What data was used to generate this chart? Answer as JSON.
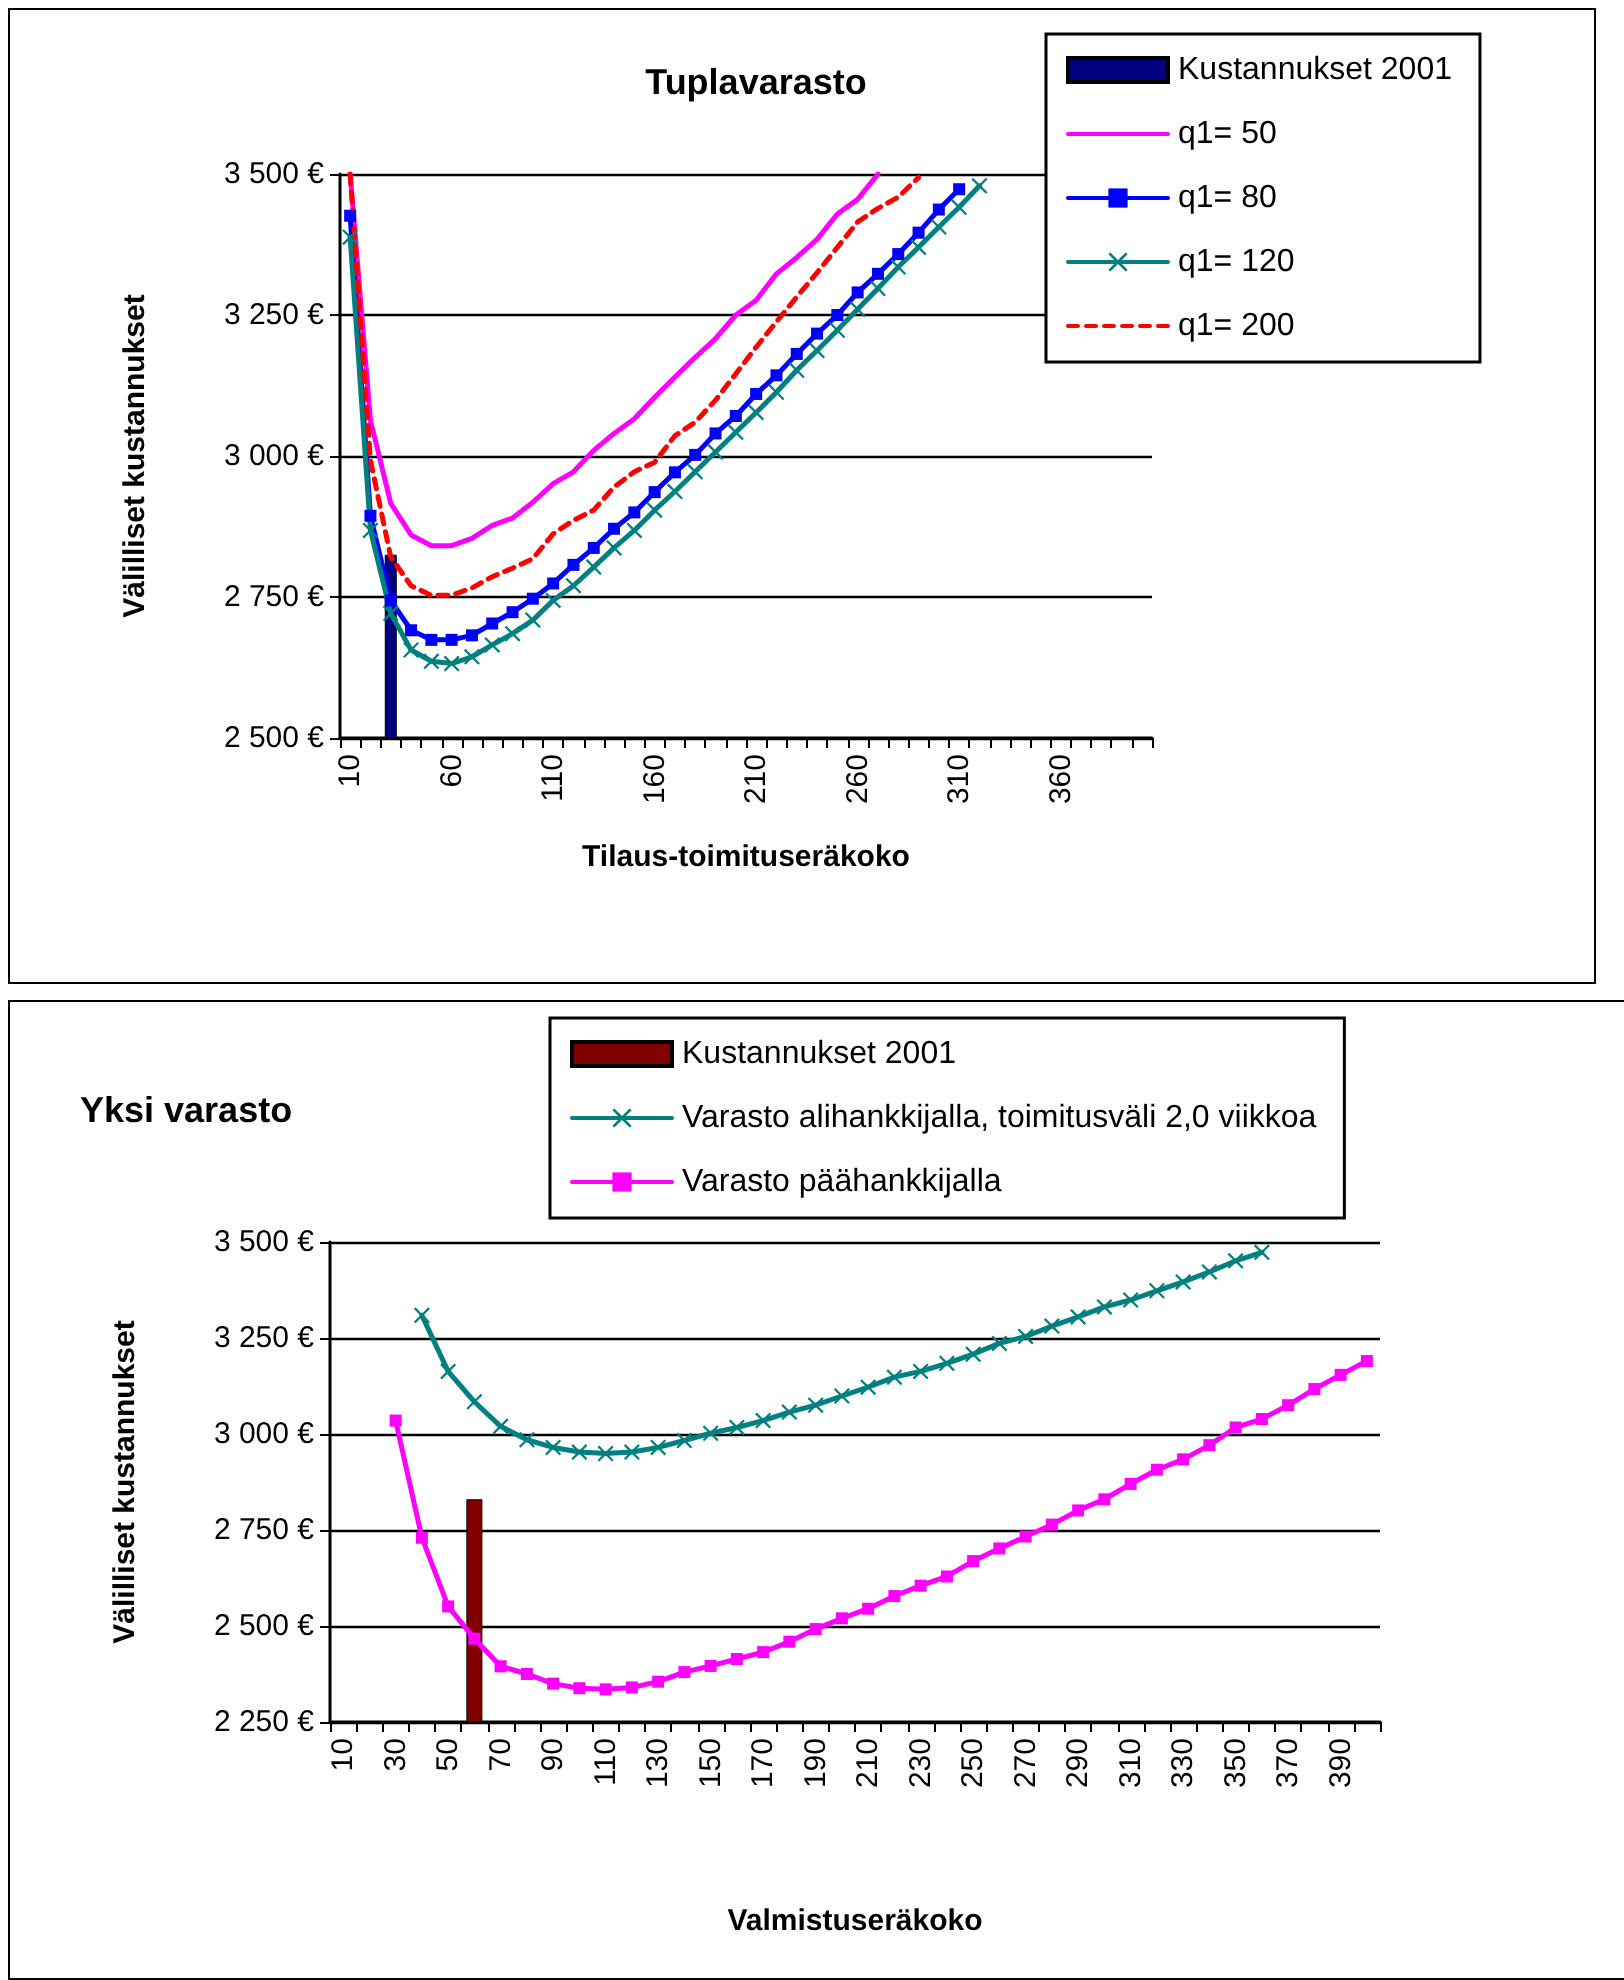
{
  "chart_data": [
    {
      "type": "line",
      "title": "Tuplavarasto",
      "xlabel": "Tilaus-toimituseräkoko",
      "ylabel": "Välilliset kustannukset",
      "categories": [
        "10",
        null,
        null,
        null,
        null,
        "60",
        null,
        null,
        null,
        null,
        "110",
        null,
        null,
        null,
        null,
        "160",
        null,
        null,
        null,
        null,
        "210",
        null,
        null,
        null,
        null,
        "260",
        null,
        null,
        null,
        null,
        "310",
        null,
        null,
        null,
        null,
        "360",
        null,
        null,
        null,
        null
      ],
      "series": [
        {
          "name": "Kustannukset 2001",
          "type": "bar",
          "color": "#000080",
          "values": [
            null,
            null,
            2825,
            null,
            null,
            null,
            null,
            null,
            null,
            null,
            null,
            null,
            null,
            null,
            null,
            null,
            null,
            null,
            null,
            null,
            null,
            null,
            null,
            null,
            null,
            null,
            null,
            null,
            null,
            null,
            null,
            null,
            null,
            null,
            null,
            null,
            null,
            null,
            null,
            null
          ]
        },
        {
          "name": "q1= 50",
          "color": "#ff00ff",
          "marker": "none",
          "values": [
            3500,
            3063,
            2916,
            2860,
            2841,
            2841,
            2854,
            2877,
            2890,
            2918,
            2951,
            2972,
            3010,
            3040,
            3066,
            3104,
            3140,
            3175,
            3208,
            3250,
            3276,
            3323,
            3352,
            3384,
            3429,
            3455,
            3500,
            null,
            null,
            null,
            null,
            null,
            null,
            null,
            null,
            null,
            null,
            null,
            null,
            null
          ]
        },
        {
          "name": "q1= 80",
          "color": "#0000ff",
          "marker": "square",
          "values": [
            3426,
            2894,
            2744,
            2691,
            2674,
            2674,
            2682,
            2703,
            2723,
            2747,
            2774,
            2807,
            2837,
            2871,
            2900,
            2936,
            2971,
            3002,
            3040,
            3071,
            3110,
            3143,
            3181,
            3217,
            3250,
            3290,
            3323,
            3358,
            3396,
            3437,
            3473,
            null,
            null,
            null,
            null,
            null,
            null,
            null,
            null,
            null
          ]
        },
        {
          "name": "q1= 120",
          "color": "#008080",
          "marker": "cross",
          "values": [
            3388,
            2868,
            2721,
            2656,
            2636,
            2632,
            2644,
            2665,
            2685,
            2709,
            2744,
            2770,
            2803,
            2837,
            2868,
            2904,
            2937,
            2972,
            3007,
            3042,
            3077,
            3113,
            3152,
            3187,
            3223,
            3260,
            3297,
            3335,
            3370,
            3406,
            3441,
            3479,
            null,
            null,
            null,
            null,
            null,
            null,
            null,
            null
          ]
        },
        {
          "name": "q1= 200",
          "color": "#ff0000",
          "marker": "none",
          "line_style": "dashed",
          "values": [
            3500,
            2992,
            2821,
            2770,
            2753,
            2753,
            2766,
            2786,
            2801,
            2818,
            2862,
            2886,
            2904,
            2945,
            2972,
            2989,
            3036,
            3060,
            3099,
            3146,
            3193,
            3238,
            3282,
            3325,
            3370,
            3415,
            3439,
            3459,
            3494,
            null,
            null,
            null,
            null,
            null,
            null,
            null,
            null,
            null,
            null,
            null
          ]
        }
      ],
      "ylim": [
        2500,
        3500
      ],
      "yticks": [
        {
          "value": 2500,
          "label": "2 500 €"
        },
        {
          "value": 2750,
          "label": "2 750 €"
        },
        {
          "value": 3000,
          "label": "3 000 €"
        },
        {
          "value": 3250,
          "label": "3 250 €"
        },
        {
          "value": 3500,
          "label": "3 500 €"
        }
      ],
      "grid": "y",
      "legend": "top right"
    },
    {
      "type": "line",
      "title": "Yksi varasto",
      "xlabel": "Valmistuseräkoko",
      "ylabel": "Välilliset kustannukset",
      "categories": [
        "10",
        null,
        "30",
        null,
        "50",
        null,
        "70",
        null,
        "90",
        null,
        "110",
        null,
        "130",
        null,
        "150",
        null,
        "170",
        null,
        "190",
        null,
        "210",
        null,
        "230",
        null,
        "250",
        null,
        "270",
        null,
        "290",
        null,
        "310",
        null,
        "330",
        null,
        "350",
        null,
        "370",
        null,
        "390",
        null
      ],
      "series": [
        {
          "name": "Kustannukset 2001",
          "type": "bar",
          "color": "#800000",
          "values": [
            null,
            null,
            null,
            null,
            null,
            2830,
            null,
            null,
            null,
            null,
            null,
            null,
            null,
            null,
            null,
            null,
            null,
            null,
            null,
            null,
            null,
            null,
            null,
            null,
            null,
            null,
            null,
            null,
            null,
            null,
            null,
            null,
            null,
            null,
            null,
            null,
            null,
            null,
            null,
            null
          ]
        },
        {
          "name": "Varasto alihankkijalla, toimitusväli 2,0 viikkoa",
          "color": "#008080",
          "marker": "cross",
          "values": [
            null,
            null,
            null,
            3309,
            3163,
            3084,
            3020,
            2985,
            2965,
            2953,
            2949,
            2953,
            2965,
            2983,
            3002,
            3017,
            3035,
            3057,
            3075,
            3099,
            3122,
            3148,
            3163,
            3184,
            3208,
            3236,
            3254,
            3281,
            3305,
            3331,
            3349,
            3373,
            3396,
            3422,
            3451,
            3473,
            null,
            null,
            null,
            null
          ]
        },
        {
          "name": "Varasto päähankkijalla",
          "color": "#ff00ff",
          "marker": "square",
          "values": [
            null,
            null,
            3035,
            2730,
            2551,
            2467,
            2395,
            2375,
            2350,
            2338,
            2335,
            2340,
            2355,
            2380,
            2396,
            2414,
            2432,
            2459,
            2492,
            2520,
            2545,
            2578,
            2605,
            2629,
            2669,
            2702,
            2733,
            2764,
            2801,
            2830,
            2870,
            2907,
            2934,
            2971,
            3017,
            3039,
            3075,
            3117,
            3154,
            3190
          ]
        }
      ],
      "ylim": [
        2250,
        3500
      ],
      "yticks": [
        {
          "value": 2250,
          "label": "2 250 €"
        },
        {
          "value": 2500,
          "label": "2 500 €"
        },
        {
          "value": 2750,
          "label": "2 750 €"
        },
        {
          "value": 3000,
          "label": "3 000 €"
        },
        {
          "value": 3250,
          "label": "3 250 €"
        },
        {
          "value": 3500,
          "label": "3 500 €"
        }
      ],
      "grid": "y",
      "legend": "top right"
    }
  ]
}
